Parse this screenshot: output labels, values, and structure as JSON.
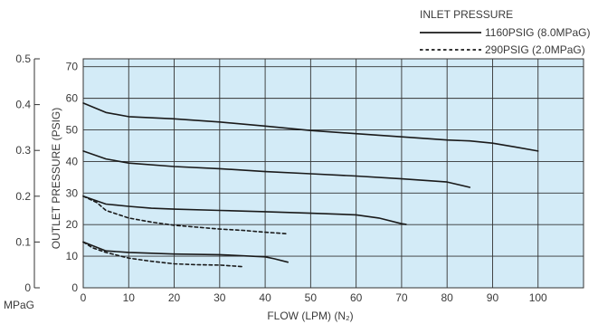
{
  "chart_data": {
    "type": "line",
    "legend": {
      "title": "INLET PRESSURE",
      "position": "top-right",
      "entries": [
        {
          "label": "1160PSIG (8.0MPaG)",
          "style": "solid"
        },
        {
          "label": "290PSIG (2.0MPaG)",
          "style": "dashed"
        }
      ]
    },
    "xlabel": "FLOW (LPM) (N₂)",
    "ylabel": "OUTLET PRESSURE (PSIG)",
    "y2label": "MPaG",
    "xlim": [
      0,
      110
    ],
    "ylim": [
      0,
      72.5
    ],
    "y2lim": [
      0,
      0.5
    ],
    "x_ticks": [
      "0",
      "10",
      "20",
      "30",
      "40",
      "50",
      "60",
      "70",
      "80",
      "90",
      "100"
    ],
    "y_ticks": [
      "0",
      "10",
      "20",
      "30",
      "40",
      "50",
      "60",
      "70"
    ],
    "y2_ticks": [
      "0",
      "0.1",
      "0.2",
      "0.3",
      "0.4",
      "0.5"
    ],
    "grid": true,
    "background_color": "#d3ebf7",
    "line_color": "#1a1a1a",
    "series": [
      {
        "inlet": "1160PSIG (8.0MPaG)",
        "style": "solid",
        "points": [
          [
            0,
            58.5
          ],
          [
            5,
            55.5
          ],
          [
            10,
            54.2
          ],
          [
            20,
            53.5
          ],
          [
            30,
            52.5
          ],
          [
            40,
            51.2
          ],
          [
            50,
            49.8
          ],
          [
            60,
            48.8
          ],
          [
            70,
            47.8
          ],
          [
            80,
            46.8
          ],
          [
            85,
            46.5
          ],
          [
            90,
            45.8
          ],
          [
            95,
            44.6
          ],
          [
            100,
            43.3
          ]
        ]
      },
      {
        "inlet": "1160PSIG (8.0MPaG)",
        "style": "solid",
        "points": [
          [
            0,
            43.3
          ],
          [
            5,
            40.8
          ],
          [
            10,
            39.5
          ],
          [
            20,
            38.4
          ],
          [
            30,
            37.7
          ],
          [
            40,
            36.8
          ],
          [
            50,
            36.1
          ],
          [
            60,
            35.4
          ],
          [
            70,
            34.5
          ],
          [
            80,
            33.5
          ],
          [
            85,
            31.8
          ]
        ]
      },
      {
        "inlet": "1160PSIG (8.0MPaG)",
        "style": "solid",
        "points": [
          [
            0,
            29.0
          ],
          [
            5,
            26.5
          ],
          [
            10,
            25.8
          ],
          [
            15,
            25.2
          ],
          [
            20,
            24.9
          ],
          [
            30,
            24.5
          ],
          [
            40,
            24.1
          ],
          [
            50,
            23.6
          ],
          [
            60,
            23.1
          ],
          [
            65,
            22.1
          ],
          [
            70,
            20.3
          ],
          [
            71,
            20.1
          ]
        ]
      },
      {
        "inlet": "1160PSIG (8.0MPaG)",
        "style": "solid",
        "points": [
          [
            0,
            14.5
          ],
          [
            5,
            11.7
          ],
          [
            10,
            11.2
          ],
          [
            20,
            10.7
          ],
          [
            30,
            10.5
          ],
          [
            40,
            9.8
          ],
          [
            42,
            9.2
          ],
          [
            45,
            8.1
          ]
        ]
      },
      {
        "inlet": "290PSIG (2.0MPaG)",
        "style": "dashed",
        "points": [
          [
            0,
            29.0
          ],
          [
            3,
            27.0
          ],
          [
            5,
            24.5
          ],
          [
            10,
            22.1
          ],
          [
            15,
            20.8
          ],
          [
            20,
            19.8
          ],
          [
            25,
            19.2
          ],
          [
            30,
            18.6
          ],
          [
            35,
            18.2
          ],
          [
            40,
            17.6
          ],
          [
            45,
            17.1
          ]
        ]
      },
      {
        "inlet": "290PSIG (2.0MPaG)",
        "style": "dashed",
        "points": [
          [
            0,
            14.5
          ],
          [
            2,
            12.7
          ],
          [
            5,
            11.2
          ],
          [
            10,
            9.4
          ],
          [
            15,
            8.4
          ],
          [
            20,
            7.6
          ],
          [
            25,
            7.3
          ],
          [
            30,
            7.2
          ],
          [
            35,
            6.7
          ]
        ]
      }
    ]
  }
}
